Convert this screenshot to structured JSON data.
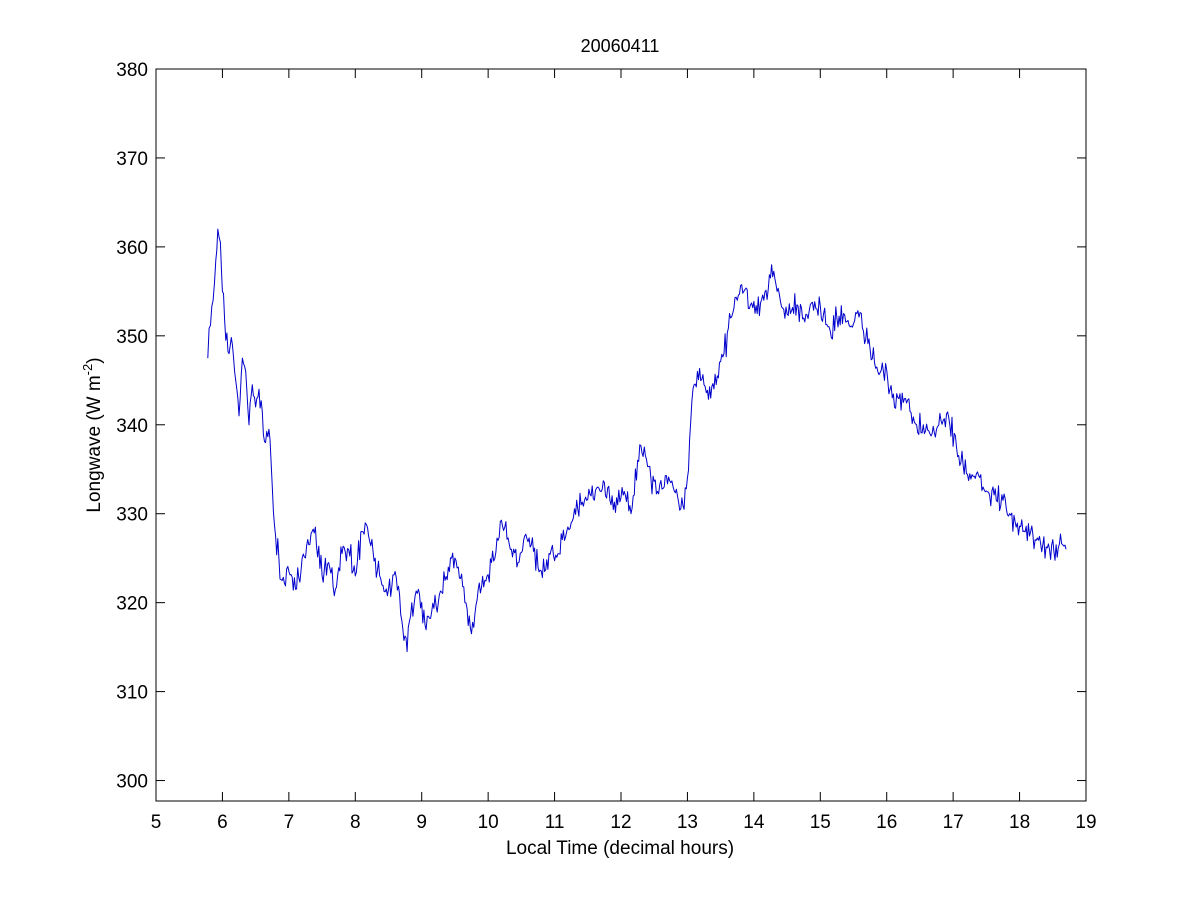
{
  "chart_data": {
    "type": "line",
    "title": "20060411",
    "xlabel": "Local Time (decimal hours)",
    "ylabel": {
      "main": "Longwave (W m",
      "superscript": "-2",
      "close": ")"
    },
    "xlim": [
      5,
      19
    ],
    "ylim": [
      297.7,
      380
    ],
    "xticks": [
      "5",
      "6",
      "7",
      "8",
      "9",
      "10",
      "11",
      "12",
      "13",
      "14",
      "15",
      "16",
      "17",
      "18",
      "19"
    ],
    "yticks": [
      "300",
      "310",
      "320",
      "330",
      "340",
      "350",
      "360",
      "370",
      "380"
    ],
    "grid": false,
    "line_color": "#0000cc",
    "series": [
      {
        "x": [
          5.78,
          5.82,
          5.86,
          5.9,
          5.93,
          5.97,
          6.0,
          6.05,
          6.1,
          6.15,
          6.2,
          6.25,
          6.3,
          6.35,
          6.4,
          6.45,
          6.5,
          6.55,
          6.6,
          6.65,
          6.7,
          6.75,
          6.8,
          6.85,
          6.9,
          7.0,
          7.1,
          7.2,
          7.3,
          7.4,
          7.5,
          7.6,
          7.7,
          7.8,
          7.9,
          8.0,
          8.1,
          8.2,
          8.3,
          8.4,
          8.5,
          8.6,
          8.7,
          8.78,
          8.85,
          8.95,
          9.05,
          9.15,
          9.25,
          9.35,
          9.45,
          9.55,
          9.65,
          9.75,
          9.85,
          9.95,
          10.05,
          10.15,
          10.25,
          10.35,
          10.45,
          10.55,
          10.65,
          10.75,
          10.85,
          10.95,
          11.05,
          11.15,
          11.25,
          11.35,
          11.45,
          11.55,
          11.65,
          11.75,
          11.85,
          11.95,
          12.05,
          12.15,
          12.25,
          12.35,
          12.45,
          12.55,
          12.65,
          12.75,
          12.85,
          12.95,
          13.0,
          13.05,
          13.1,
          13.15,
          13.25,
          13.35,
          13.45,
          13.55,
          13.65,
          13.75,
          13.85,
          13.95,
          14.05,
          14.15,
          14.25,
          14.35,
          14.45,
          14.55,
          14.65,
          14.75,
          14.85,
          14.95,
          15.05,
          15.15,
          15.25,
          15.35,
          15.45,
          15.55,
          15.65,
          15.75,
          15.85,
          15.95,
          16.05,
          16.15,
          16.25,
          16.35,
          16.45,
          16.55,
          16.65,
          16.75,
          16.85,
          16.95,
          17.05,
          17.15,
          17.25,
          17.35,
          17.45,
          17.55,
          17.65,
          17.75,
          17.85,
          17.95,
          18.05,
          18.15,
          18.25,
          18.35,
          18.45,
          18.55,
          18.65,
          18.7
        ],
        "y": [
          347.5,
          351.2,
          354.0,
          358.5,
          362.0,
          360.5,
          355.0,
          349.5,
          348.0,
          349.0,
          345.0,
          341.0,
          347.5,
          346.0,
          340.0,
          344.5,
          342.0,
          344.0,
          341.5,
          338.0,
          339.5,
          333.0,
          327.5,
          325.0,
          322.5,
          323.5,
          321.5,
          325.0,
          326.5,
          328.5,
          323.0,
          324.5,
          321.5,
          325.5,
          326.0,
          323.0,
          328.0,
          327.5,
          325.0,
          322.0,
          321.5,
          323.5,
          318.0,
          314.5,
          320.0,
          321.5,
          317.5,
          319.0,
          320.0,
          322.5,
          325.0,
          324.0,
          320.0,
          316.5,
          321.5,
          322.5,
          324.5,
          327.0,
          328.5,
          326.0,
          324.5,
          327.5,
          326.5,
          324.0,
          323.5,
          326.0,
          325.5,
          327.0,
          329.0,
          330.5,
          331.5,
          332.0,
          333.0,
          333.5,
          331.0,
          331.0,
          332.5,
          330.0,
          336.0,
          337.5,
          334.0,
          332.5,
          333.0,
          333.5,
          332.0,
          330.5,
          334.0,
          340.5,
          344.5,
          346.0,
          344.5,
          343.0,
          345.5,
          348.0,
          352.0,
          354.0,
          355.0,
          353.5,
          352.5,
          354.0,
          356.5,
          355.0,
          353.0,
          352.5,
          353.5,
          352.0,
          353.5,
          353.0,
          352.5,
          350.5,
          352.0,
          352.5,
          351.0,
          352.5,
          350.5,
          348.5,
          346.5,
          346.0,
          344.0,
          343.5,
          342.5,
          341.5,
          340.0,
          340.0,
          339.0,
          339.5,
          340.5,
          340.0,
          337.5,
          335.5,
          334.5,
          334.5,
          333.0,
          332.0,
          331.5,
          331.5,
          330.0,
          328.5,
          328.0,
          327.5,
          327.0,
          326.5,
          326.0,
          326.5,
          326.5,
          326.0
        ]
      }
    ]
  }
}
